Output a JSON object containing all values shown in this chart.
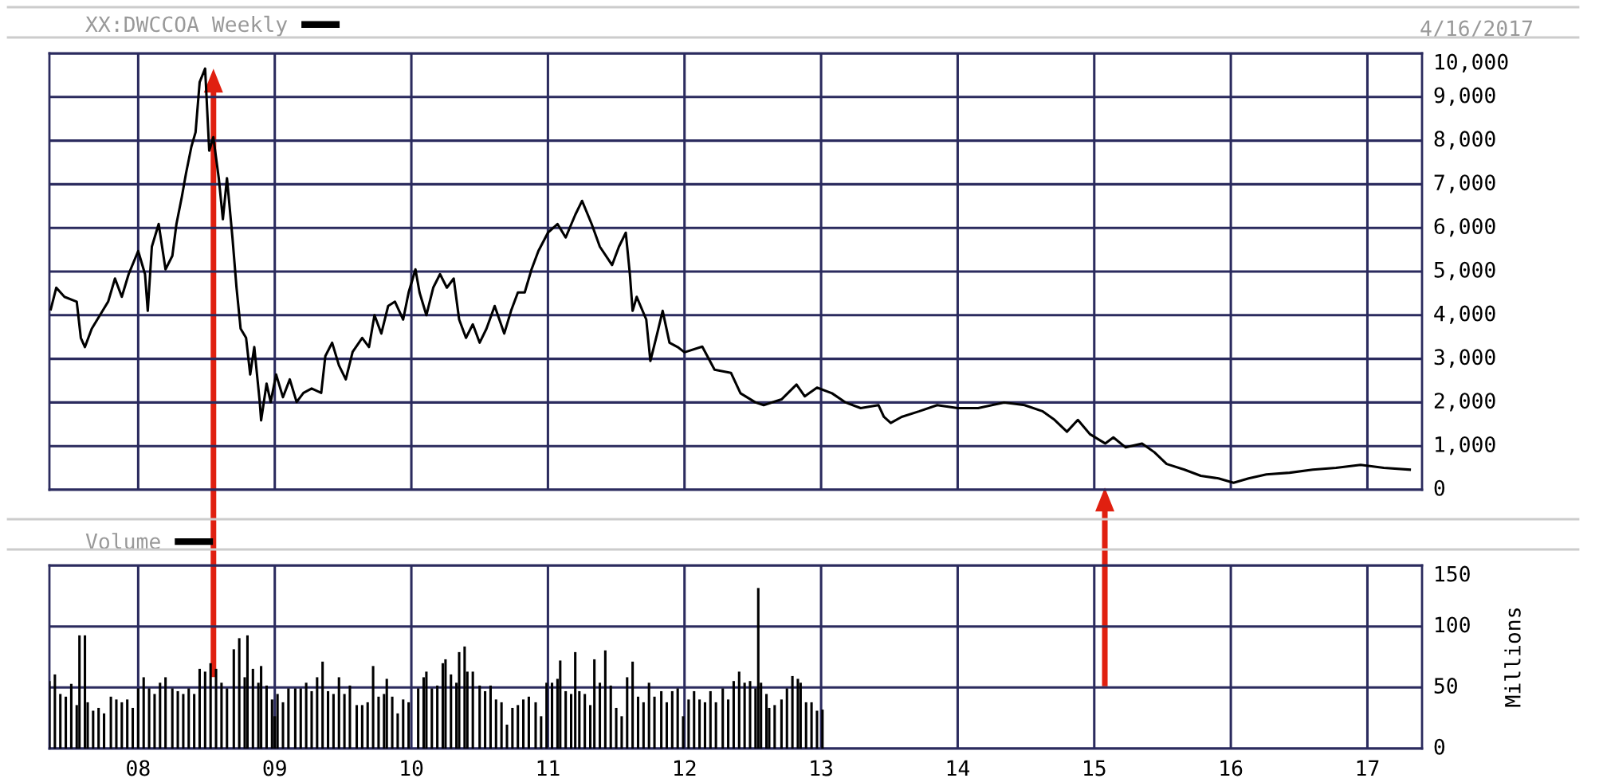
{
  "chart_data": [
    {
      "type": "line",
      "legend": "top left",
      "grid": true,
      "tick_labels": "y",
      "annotations": [
        "4/16/2017"
      ],
      "xlim": [
        2007.35,
        2017.4
      ],
      "xticks": [
        {
          "value": 2008,
          "label": null
        },
        {
          "value": 2009,
          "label": null
        },
        {
          "value": 2010,
          "label": null
        },
        {
          "value": 2011,
          "label": null
        },
        {
          "value": 2012,
          "label": null
        },
        {
          "value": 2013,
          "label": null
        },
        {
          "value": 2014,
          "label": null
        },
        {
          "value": 2015,
          "label": null
        },
        {
          "value": 2016,
          "label": null
        },
        {
          "value": 2017,
          "label": null
        }
      ],
      "ylim": [
        0,
        10000
      ],
      "yticks": [
        0,
        {
          "value": 1000,
          "label": "1,000"
        },
        {
          "value": 2000,
          "label": "2,000"
        },
        {
          "value": 3000,
          "label": "3,000"
        },
        {
          "value": 4000,
          "label": "4,000"
        },
        {
          "value": 5000,
          "label": "5,000"
        },
        {
          "value": 6000,
          "label": "6,000"
        },
        {
          "value": 7000,
          "label": "7,000"
        },
        {
          "value": 8000,
          "label": "8,000"
        },
        {
          "value": 9000,
          "label": "9,000"
        },
        {
          "value": 10000,
          "label": "10,000"
        }
      ],
      "series": [
        {
          "name": "XX:DWCCOA Weekly",
          "color": "#000000",
          "x": [
            2007.36,
            2007.4,
            2007.46,
            2007.55,
            2007.58,
            2007.61,
            2007.66,
            2007.72,
            2007.78,
            2007.83,
            2007.88,
            2007.93,
            2008.0,
            2008.05,
            2008.07,
            2008.1,
            2008.15,
            2008.2,
            2008.25,
            2008.28,
            2008.32,
            2008.35,
            2008.39,
            2008.42,
            2008.45,
            2008.49,
            2008.52,
            2008.55,
            2008.59,
            2008.62,
            2008.65,
            2008.69,
            2008.72,
            2008.75,
            2008.79,
            2008.82,
            2008.85,
            2008.89,
            2008.9,
            2008.94,
            2008.97,
            2009.01,
            2009.06,
            2009.11,
            2009.16,
            2009.21,
            2009.27,
            2009.34,
            2009.37,
            2009.42,
            2009.47,
            2009.52,
            2009.57,
            2009.64,
            2009.69,
            2009.73,
            2009.78,
            2009.83,
            2009.88,
            2009.94,
            2009.98,
            2010.03,
            2010.06,
            2010.11,
            2010.16,
            2010.21,
            2010.26,
            2010.31,
            2010.35,
            2010.4,
            2010.45,
            2010.5,
            2010.55,
            2010.61,
            2010.68,
            2010.73,
            2010.78,
            2010.83,
            2010.88,
            2010.93,
            2011.0,
            2011.07,
            2011.13,
            2011.2,
            2011.25,
            2011.32,
            2011.38,
            2011.47,
            2011.52,
            2011.57,
            2011.6,
            2011.62,
            2011.65,
            2011.72,
            2011.75,
            2011.8,
            2011.84,
            2011.89,
            2011.95,
            2012.0,
            2012.13,
            2012.22,
            2012.34,
            2012.41,
            2012.52,
            2012.58,
            2012.71,
            2012.82,
            2012.88,
            2012.97,
            2013.08,
            2013.18,
            2013.29,
            2013.42,
            2013.46,
            2013.51,
            2013.59,
            2013.72,
            2013.85,
            2014.0,
            2014.15,
            2014.34,
            2014.49,
            2014.62,
            2014.71,
            2014.8,
            2014.88,
            2014.97,
            2015.08,
            2015.14,
            2015.23,
            2015.35,
            2015.44,
            2015.53,
            2015.66,
            2015.78,
            2015.91,
            2016.02,
            2016.13,
            2016.26,
            2016.43,
            2016.6,
            2016.77,
            2016.95,
            2017.12,
            2017.31
          ],
          "values": [
            4136,
            4630,
            4420,
            4310,
            3480,
            3270,
            3690,
            4000,
            4310,
            4840,
            4420,
            4940,
            5470,
            4940,
            4100,
            5570,
            6090,
            5050,
            5360,
            6090,
            6720,
            7250,
            7870,
            8190,
            9340,
            9650,
            7770,
            8080,
            7140,
            6200,
            7140,
            5780,
            4630,
            3690,
            3480,
            2640,
            3270,
            2010,
            1590,
            2430,
            2010,
            2640,
            2120,
            2530,
            2010,
            2220,
            2320,
            2220,
            3060,
            3370,
            2850,
            2530,
            3160,
            3480,
            3270,
            4000,
            3580,
            4210,
            4310,
            3900,
            4520,
            5050,
            4520,
            4000,
            4630,
            4940,
            4630,
            4840,
            3900,
            3480,
            3790,
            3370,
            3690,
            4210,
            3580,
            4100,
            4520,
            4520,
            5050,
            5470,
            5890,
            6090,
            5780,
            6300,
            6620,
            6090,
            5570,
            5150,
            5570,
            5890,
            4940,
            4100,
            4420,
            3900,
            2950,
            3580,
            4100,
            3370,
            3270,
            3150,
            3280,
            2750,
            2680,
            2210,
            2000,
            1940,
            2070,
            2410,
            2140,
            2340,
            2210,
            2000,
            1870,
            1940,
            1670,
            1530,
            1670,
            1800,
            1940,
            1870,
            1870,
            2000,
            1940,
            1800,
            1600,
            1330,
            1600,
            1270,
            1060,
            1200,
            970,
            1060,
            860,
            590,
            460,
            320,
            260,
            160,
            260,
            350,
            390,
            460,
            500,
            570,
            500,
            460
          ]
        }
      ]
    },
    {
      "type": "bar",
      "legend": "top left",
      "grid": true,
      "ylabel": "Millions",
      "xlim": [
        2007.35,
        2017.4
      ],
      "xticks": [
        {
          "value": 2008,
          "label": "08"
        },
        {
          "value": 2009,
          "label": "09"
        },
        {
          "value": 2010,
          "label": "10"
        },
        {
          "value": 2011,
          "label": "11"
        },
        {
          "value": 2012,
          "label": "12"
        },
        {
          "value": 2013,
          "label": "13"
        },
        {
          "value": 2014,
          "label": "14"
        },
        {
          "value": 2015,
          "label": "15"
        },
        {
          "value": 2016,
          "label": "16"
        },
        {
          "value": 2017,
          "label": "17"
        }
      ],
      "ylim": [
        0,
        150
      ],
      "yticks": [
        0,
        50,
        100,
        150
      ],
      "series": [
        {
          "name": "Volume",
          "color": "#000000",
          "x": [
            2007.35,
            2007.39,
            2007.43,
            2007.47,
            2007.51,
            2007.55,
            2007.57,
            2007.61,
            2007.63,
            2007.67,
            2007.71,
            2007.75,
            2007.8,
            2007.84,
            2007.88,
            2007.92,
            2007.96,
            2008.0,
            2008.04,
            2008.08,
            2008.12,
            2008.16,
            2008.2,
            2008.25,
            2008.29,
            2008.33,
            2008.37,
            2008.41,
            2008.45,
            2008.49,
            2008.53,
            2008.57,
            2008.61,
            2008.65,
            2008.7,
            2008.74,
            2008.78,
            2008.8,
            2008.84,
            2008.88,
            2008.9,
            2008.94,
            2008.98,
            2009.0,
            2009.02,
            2009.06,
            2009.1,
            2009.15,
            2009.19,
            2009.23,
            2009.27,
            2009.31,
            2009.35,
            2009.39,
            2009.43,
            2009.47,
            2009.51,
            2009.55,
            2009.6,
            2009.64,
            2009.68,
            2009.72,
            2009.76,
            2009.8,
            2009.82,
            2009.86,
            2009.9,
            2009.94,
            2009.98,
            2010.05,
            2010.09,
            2010.11,
            2010.15,
            2010.19,
            2010.23,
            2010.25,
            2010.29,
            2010.33,
            2010.35,
            2010.39,
            2010.41,
            2010.45,
            2010.5,
            2010.54,
            2010.58,
            2010.62,
            2010.66,
            2010.7,
            2010.74,
            2010.78,
            2010.82,
            2010.86,
            2010.91,
            2010.95,
            2010.99,
            2011.03,
            2011.07,
            2011.09,
            2011.13,
            2011.17,
            2011.2,
            2011.23,
            2011.27,
            2011.31,
            2011.34,
            2011.38,
            2011.42,
            2011.46,
            2011.5,
            2011.54,
            2011.58,
            2011.62,
            2011.66,
            2011.7,
            2011.74,
            2011.78,
            2011.83,
            2011.87,
            2011.91,
            2011.95,
            2011.99,
            2012.03,
            2012.07,
            2012.11,
            2012.15,
            2012.19,
            2012.23,
            2012.28,
            2012.32,
            2012.36,
            2012.4,
            2012.44,
            2012.48,
            2012.52,
            2012.54,
            2012.56,
            2012.6,
            2012.62,
            2012.66,
            2012.71,
            2012.75,
            2012.79,
            2012.83,
            2012.85,
            2012.89,
            2012.93,
            2012.97,
            2013.01
          ],
          "values": [
            55.3,
            60.7,
            44.7,
            42.5,
            53.0,
            35.6,
            92.7,
            92.7,
            37.9,
            31.0,
            33.3,
            28.8,
            42.5,
            40.2,
            37.9,
            40.2,
            33.3,
            49.3,
            58.4,
            49.3,
            44.7,
            53.9,
            58.4,
            49.3,
            47.0,
            44.7,
            49.3,
            44.7,
            65.3,
            63.0,
            69.9,
            65.3,
            53.9,
            49.3,
            81.3,
            90.4,
            58.4,
            92.7,
            65.3,
            53.9,
            67.6,
            51.6,
            40.2,
            26.5,
            44.7,
            37.9,
            49.3,
            49.3,
            49.3,
            53.9,
            47.0,
            58.4,
            71.2,
            47.0,
            44.7,
            58.4,
            44.7,
            51.6,
            35.6,
            35.6,
            37.9,
            67.6,
            42.5,
            44.7,
            57.1,
            42.5,
            28.8,
            40.2,
            37.9,
            49.3,
            58.4,
            63.0,
            49.3,
            51.6,
            69.9,
            73.1,
            60.7,
            53.9,
            79.0,
            83.6,
            63.0,
            63.0,
            51.6,
            47.0,
            51.6,
            40.2,
            37.9,
            19.6,
            33.3,
            35.6,
            40.2,
            42.5,
            37.9,
            26.5,
            53.9,
            53.9,
            57.1,
            72.1,
            47.0,
            44.7,
            79.0,
            47.0,
            44.7,
            35.6,
            73.1,
            53.9,
            80.4,
            51.6,
            33.3,
            26.5,
            58.4,
            71.2,
            42.5,
            37.9,
            53.9,
            42.5,
            47.0,
            37.9,
            47.0,
            49.3,
            26.5,
            40.2,
            47.0,
            40.2,
            37.9,
            47.0,
            37.9,
            49.3,
            40.2,
            55.3,
            63.0,
            53.9,
            55.3,
            49.3,
            131.5,
            53.9,
            44.7,
            33.3,
            35.6,
            40.2,
            49.3,
            59.4,
            57.1,
            53.9,
            37.9,
            37.9,
            31.0,
            31.9
          ]
        }
      ]
    }
  ]
}
